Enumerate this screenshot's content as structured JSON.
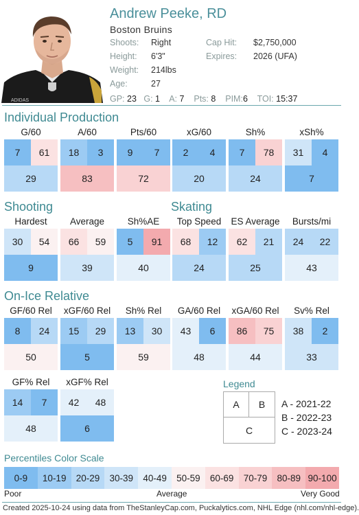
{
  "player": {
    "name": "Andrew Peeke, RD",
    "team": "Boston Bruins",
    "shoots_label": "Shoots:",
    "shoots": "Right",
    "height_label": "Height:",
    "height": "6'3\"",
    "weight_label": "Weight:",
    "weight": "214lbs",
    "age_label": "Age:",
    "age": "27",
    "caphit_label": "Cap Hit:",
    "caphit": "$2,750,000",
    "expires_label": "Expires:",
    "expires": "2026 (UFA)",
    "jersey_text": "ADIDAS"
  },
  "stats": {
    "gp_label": "GP:",
    "gp": "23",
    "g_label": "G:",
    "g": "1",
    "a_label": "A:",
    "a": "7",
    "pts_label": "Pts:",
    "pts": "8",
    "pim_label": "PIM:",
    "pim": "6",
    "toi_label": "TOI:",
    "toi": "15:37"
  },
  "sections": {
    "individual": "Individual Production",
    "shooting": "Shooting",
    "skating": "Skating",
    "onice": "On-Ice Relative"
  },
  "metrics": [
    {
      "label": "G/60",
      "a": 7,
      "b": 61,
      "c": 29
    },
    {
      "label": "A/60",
      "a": 18,
      "b": 3,
      "c": 83
    },
    {
      "label": "Pts/60",
      "a": 9,
      "b": 7,
      "c": 72
    },
    {
      "label": "xG/60",
      "a": 2,
      "b": 4,
      "c": 20
    },
    {
      "label": "Sh%",
      "a": 7,
      "b": 78,
      "c": 24
    },
    {
      "label": "xSh%",
      "a": 31,
      "b": 4,
      "c": 7
    },
    {
      "label": "Hardest",
      "a": 30,
      "b": 54,
      "c": 9
    },
    {
      "label": "Average",
      "a": 66,
      "b": 59,
      "c": 39
    },
    {
      "label": "Sh%AE",
      "a": 5,
      "b": 91,
      "c": 40
    },
    {
      "label": "Top Speed",
      "a": 68,
      "b": 12,
      "c": 24
    },
    {
      "label": "ES Average",
      "a": 62,
      "b": 21,
      "c": 25
    },
    {
      "label": "Bursts/mi",
      "a": 24,
      "b": 22,
      "c": 43
    },
    {
      "label": "GF/60 Rel",
      "a": 8,
      "b": 24,
      "c": 50
    },
    {
      "label": "xGF/60 Rel",
      "a": 15,
      "b": 29,
      "c": 5
    },
    {
      "label": "Sh% Rel",
      "a": 13,
      "b": 30,
      "c": 59
    },
    {
      "label": "GA/60 Rel",
      "a": 43,
      "b": 6,
      "c": 48
    },
    {
      "label": "xGA/60 Rel",
      "a": 86,
      "b": 75,
      "c": 44
    },
    {
      "label": "Sv% Rel",
      "a": 38,
      "b": 2,
      "c": 33
    },
    {
      "label": "GF% Rel",
      "a": 14,
      "b": 7,
      "c": 48
    },
    {
      "label": "xGF% Rel",
      "a": 42,
      "b": 48,
      "c": 6
    }
  ],
  "legend": {
    "title": "Legend",
    "a": "A",
    "b": "B",
    "c": "C",
    "key_a": "A - 2021-22",
    "key_b": "B - 2022-23",
    "key_c": "C - 2023-24"
  },
  "scale": {
    "title": "Percentiles Color Scale",
    "ranges": [
      "0-9",
      "10-19",
      "20-29",
      "30-39",
      "40-49",
      "50-59",
      "60-69",
      "70-79",
      "80-89",
      "90-100"
    ],
    "colors": [
      "#7fbcef",
      "#9ccbf3",
      "#b7d9f6",
      "#cfe5f8",
      "#e4f0fa",
      "#fbf1f1",
      "#fbe2e2",
      "#f9d2d3",
      "#f6bfc1",
      "#f3aaae"
    ],
    "poor": "Poor",
    "average": "Average",
    "very_good": "Very Good"
  },
  "footer": "Created 2025-10-24 using data from TheStanleyCap.com, Puckalytics.com, NHL Edge (nhl.com/nhl-edge)."
}
